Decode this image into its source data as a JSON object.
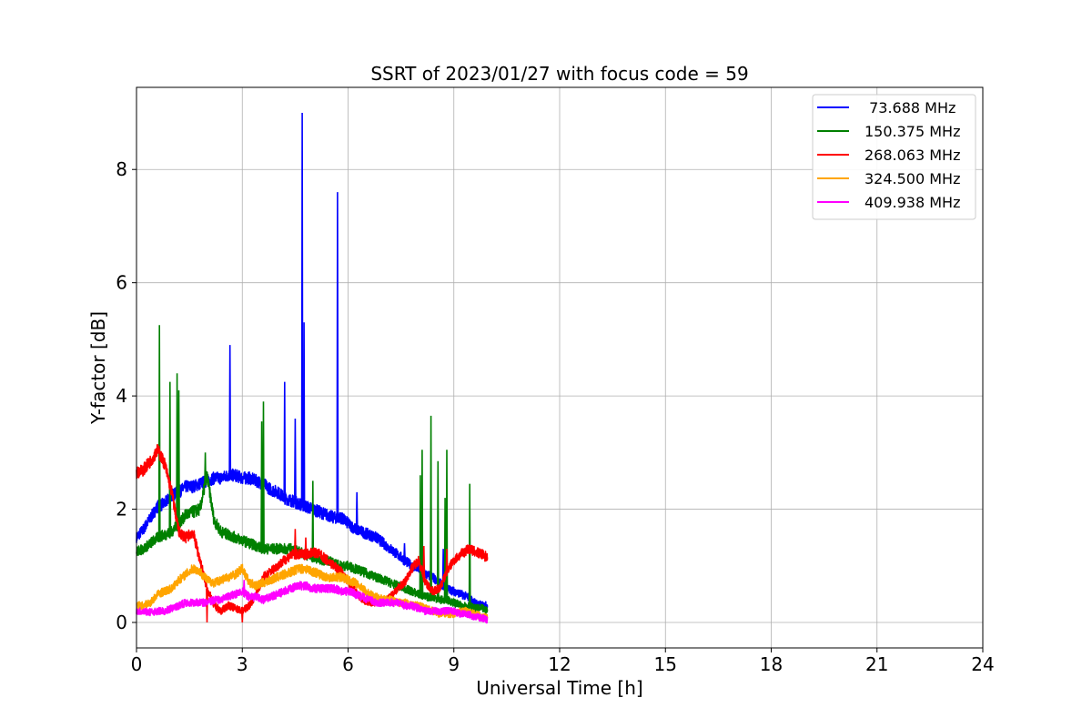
{
  "chart_data": {
    "type": "line",
    "title": "SSRT of 2023/01/27 with focus code = 59",
    "xlabel": "Universal Time [h]",
    "ylabel": "Y-factor [dB]",
    "xlim": [
      0,
      24
    ],
    "ylim": [
      -0.45,
      9.45
    ],
    "xticks": [
      0,
      3,
      6,
      9,
      12,
      15,
      18,
      21,
      24
    ],
    "yticks": [
      0,
      2,
      4,
      6,
      8
    ],
    "grid": true,
    "legend_position": "top-right",
    "series": [
      {
        "name": " 73.688 MHz",
        "color": "#0000ff",
        "points": [
          [
            0,
            1.5
          ],
          [
            0.2,
            1.65
          ],
          [
            0.4,
            1.85
          ],
          [
            0.6,
            2.05
          ],
          [
            0.8,
            2.1
          ],
          [
            1.0,
            2.25
          ],
          [
            1.2,
            2.3
          ],
          [
            1.4,
            2.4
          ],
          [
            1.6,
            2.4
          ],
          [
            1.8,
            2.45
          ],
          [
            2.0,
            2.5
          ],
          [
            2.2,
            2.55
          ],
          [
            2.4,
            2.55
          ],
          [
            2.6,
            2.6
          ],
          [
            2.8,
            2.6
          ],
          [
            3.0,
            2.55
          ],
          [
            3.2,
            2.55
          ],
          [
            3.4,
            2.5
          ],
          [
            3.6,
            2.45
          ],
          [
            3.8,
            2.35
          ],
          [
            4.0,
            2.3
          ],
          [
            4.2,
            2.2
          ],
          [
            4.4,
            2.15
          ],
          [
            4.6,
            2.1
          ],
          [
            4.8,
            2.05
          ],
          [
            5.0,
            2.0
          ],
          [
            5.2,
            1.95
          ],
          [
            5.4,
            1.9
          ],
          [
            5.6,
            1.85
          ],
          [
            5.8,
            1.85
          ],
          [
            6.0,
            1.75
          ],
          [
            6.2,
            1.65
          ],
          [
            6.4,
            1.6
          ],
          [
            6.6,
            1.55
          ],
          [
            6.8,
            1.5
          ],
          [
            7.0,
            1.4
          ],
          [
            7.2,
            1.3
          ],
          [
            7.4,
            1.2
          ],
          [
            7.6,
            1.1
          ],
          [
            7.8,
            1.0
          ],
          [
            8.0,
            0.95
          ],
          [
            8.2,
            0.85
          ],
          [
            8.4,
            0.8
          ],
          [
            8.6,
            0.7
          ],
          [
            8.8,
            0.6
          ],
          [
            9.0,
            0.55
          ],
          [
            9.2,
            0.5
          ],
          [
            9.4,
            0.45
          ],
          [
            9.6,
            0.35
          ],
          [
            9.8,
            0.3
          ],
          [
            9.95,
            0.3
          ]
        ],
        "spikes": [
          [
            2.65,
            4.9
          ],
          [
            4.2,
            4.25
          ],
          [
            4.5,
            3.6
          ],
          [
            4.7,
            9.0
          ],
          [
            4.75,
            5.3
          ],
          [
            5.7,
            7.6
          ],
          [
            6.25,
            2.3
          ],
          [
            7.6,
            1.4
          ],
          [
            8.1,
            1.3
          ],
          [
            8.7,
            1.3
          ]
        ]
      },
      {
        "name": "150.375 MHz",
        "color": "#008000",
        "points": [
          [
            0,
            1.25
          ],
          [
            0.2,
            1.3
          ],
          [
            0.4,
            1.4
          ],
          [
            0.6,
            1.5
          ],
          [
            0.8,
            1.55
          ],
          [
            1.0,
            1.6
          ],
          [
            1.2,
            1.75
          ],
          [
            1.4,
            1.9
          ],
          [
            1.6,
            1.95
          ],
          [
            1.8,
            2.0
          ],
          [
            2.0,
            2.6
          ],
          [
            2.2,
            1.8
          ],
          [
            2.4,
            1.6
          ],
          [
            2.6,
            1.55
          ],
          [
            2.8,
            1.5
          ],
          [
            3.0,
            1.45
          ],
          [
            3.2,
            1.4
          ],
          [
            3.4,
            1.35
          ],
          [
            3.6,
            1.3
          ],
          [
            3.8,
            1.3
          ],
          [
            4.0,
            1.3
          ],
          [
            4.2,
            1.3
          ],
          [
            4.4,
            1.3
          ],
          [
            4.6,
            1.25
          ],
          [
            4.8,
            1.2
          ],
          [
            5.0,
            1.15
          ],
          [
            5.2,
            1.1
          ],
          [
            5.4,
            1.1
          ],
          [
            5.6,
            1.05
          ],
          [
            5.8,
            1.0
          ],
          [
            6.0,
            1.0
          ],
          [
            6.2,
            0.95
          ],
          [
            6.4,
            0.9
          ],
          [
            6.6,
            0.85
          ],
          [
            6.8,
            0.8
          ],
          [
            7.0,
            0.75
          ],
          [
            7.2,
            0.7
          ],
          [
            7.4,
            0.65
          ],
          [
            7.6,
            0.6
          ],
          [
            7.8,
            0.55
          ],
          [
            8.0,
            0.5
          ],
          [
            8.2,
            0.45
          ],
          [
            8.4,
            0.45
          ],
          [
            8.6,
            0.4
          ],
          [
            8.8,
            0.4
          ],
          [
            9.0,
            0.35
          ],
          [
            9.2,
            0.3
          ],
          [
            9.4,
            0.3
          ],
          [
            9.6,
            0.25
          ],
          [
            9.8,
            0.25
          ],
          [
            9.95,
            0.2
          ]
        ],
        "spikes": [
          [
            0.65,
            5.25
          ],
          [
            0.95,
            4.25
          ],
          [
            1.15,
            4.4
          ],
          [
            1.2,
            4.1
          ],
          [
            1.95,
            3.0
          ],
          [
            3.55,
            3.55
          ],
          [
            3.6,
            3.9
          ],
          [
            5.0,
            2.5
          ],
          [
            8.05,
            2.6
          ],
          [
            8.1,
            3.05
          ],
          [
            8.35,
            3.65
          ],
          [
            8.55,
            2.85
          ],
          [
            8.8,
            3.05
          ],
          [
            8.75,
            2.2
          ],
          [
            9.45,
            2.45
          ]
        ]
      },
      {
        "name": "268.063 MHz",
        "color": "#ff0000",
        "points": [
          [
            0,
            2.65
          ],
          [
            0.2,
            2.7
          ],
          [
            0.4,
            2.85
          ],
          [
            0.6,
            3.05
          ],
          [
            0.8,
            2.8
          ],
          [
            1.0,
            2.3
          ],
          [
            1.2,
            1.6
          ],
          [
            1.4,
            1.5
          ],
          [
            1.6,
            1.6
          ],
          [
            1.8,
            1.1
          ],
          [
            2.0,
            0.6
          ],
          [
            2.2,
            0.3
          ],
          [
            2.4,
            0.2
          ],
          [
            2.6,
            0.3
          ],
          [
            2.8,
            0.25
          ],
          [
            3.0,
            0.2
          ],
          [
            3.2,
            0.3
          ],
          [
            3.4,
            0.5
          ],
          [
            3.6,
            0.8
          ],
          [
            3.8,
            0.9
          ],
          [
            4.0,
            1.0
          ],
          [
            4.2,
            1.1
          ],
          [
            4.4,
            1.2
          ],
          [
            4.6,
            1.2
          ],
          [
            4.8,
            1.2
          ],
          [
            5.0,
            1.25
          ],
          [
            5.2,
            1.2
          ],
          [
            5.4,
            1.1
          ],
          [
            5.6,
            1.0
          ],
          [
            5.8,
            0.9
          ],
          [
            6.0,
            0.7
          ],
          [
            6.2,
            0.55
          ],
          [
            6.4,
            0.4
          ],
          [
            6.6,
            0.35
          ],
          [
            6.8,
            0.35
          ],
          [
            7.0,
            0.35
          ],
          [
            7.2,
            0.45
          ],
          [
            7.4,
            0.6
          ],
          [
            7.6,
            0.7
          ],
          [
            7.8,
            0.95
          ],
          [
            8.0,
            1.1
          ],
          [
            8.2,
            0.7
          ],
          [
            8.4,
            0.55
          ],
          [
            8.6,
            0.6
          ],
          [
            8.8,
            0.9
          ],
          [
            9.0,
            1.1
          ],
          [
            9.2,
            1.2
          ],
          [
            9.4,
            1.3
          ],
          [
            9.6,
            1.25
          ],
          [
            9.8,
            1.2
          ],
          [
            9.95,
            1.15
          ]
        ],
        "spikes": [
          [
            4.5,
            1.65
          ],
          [
            4.8,
            1.5
          ],
          [
            2.0,
            0.0
          ],
          [
            3.0,
            0.0
          ],
          [
            8.8,
            1.3
          ],
          [
            8.15,
            1.35
          ]
        ]
      },
      {
        "name": "324.500 MHz",
        "color": "#ffa500",
        "points": [
          [
            0,
            0.3
          ],
          [
            0.2,
            0.3
          ],
          [
            0.4,
            0.35
          ],
          [
            0.6,
            0.5
          ],
          [
            0.8,
            0.55
          ],
          [
            1.0,
            0.6
          ],
          [
            1.2,
            0.75
          ],
          [
            1.4,
            0.85
          ],
          [
            1.6,
            0.95
          ],
          [
            1.8,
            0.9
          ],
          [
            2.0,
            0.75
          ],
          [
            2.2,
            0.7
          ],
          [
            2.4,
            0.75
          ],
          [
            2.6,
            0.8
          ],
          [
            2.8,
            0.85
          ],
          [
            3.0,
            0.95
          ],
          [
            3.2,
            0.7
          ],
          [
            3.4,
            0.65
          ],
          [
            3.6,
            0.7
          ],
          [
            3.8,
            0.75
          ],
          [
            4.0,
            0.8
          ],
          [
            4.2,
            0.85
          ],
          [
            4.4,
            0.9
          ],
          [
            4.6,
            0.95
          ],
          [
            4.8,
            0.95
          ],
          [
            5.0,
            0.9
          ],
          [
            5.2,
            0.85
          ],
          [
            5.4,
            0.8
          ],
          [
            5.6,
            0.8
          ],
          [
            5.8,
            0.8
          ],
          [
            6.0,
            0.75
          ],
          [
            6.2,
            0.7
          ],
          [
            6.4,
            0.6
          ],
          [
            6.6,
            0.5
          ],
          [
            6.8,
            0.45
          ],
          [
            7.0,
            0.4
          ],
          [
            7.2,
            0.4
          ],
          [
            7.4,
            0.35
          ],
          [
            7.6,
            0.35
          ],
          [
            7.8,
            0.3
          ],
          [
            8.0,
            0.3
          ],
          [
            8.2,
            0.25
          ],
          [
            8.4,
            0.2
          ],
          [
            8.6,
            0.15
          ],
          [
            8.8,
            0.15
          ],
          [
            9.0,
            0.15
          ],
          [
            9.2,
            0.2
          ],
          [
            9.4,
            0.2
          ],
          [
            9.6,
            0.15
          ],
          [
            9.8,
            0.1
          ],
          [
            9.95,
            0.1
          ]
        ],
        "spikes": []
      },
      {
        "name": "409.938 MHz",
        "color": "#ff00ff",
        "points": [
          [
            0,
            0.2
          ],
          [
            0.2,
            0.2
          ],
          [
            0.4,
            0.18
          ],
          [
            0.6,
            0.2
          ],
          [
            0.8,
            0.2
          ],
          [
            1.0,
            0.25
          ],
          [
            1.2,
            0.3
          ],
          [
            1.4,
            0.35
          ],
          [
            1.6,
            0.35
          ],
          [
            1.8,
            0.35
          ],
          [
            2.0,
            0.35
          ],
          [
            2.2,
            0.4
          ],
          [
            2.4,
            0.4
          ],
          [
            2.6,
            0.45
          ],
          [
            2.8,
            0.5
          ],
          [
            3.0,
            0.55
          ],
          [
            3.2,
            0.45
          ],
          [
            3.4,
            0.45
          ],
          [
            3.6,
            0.4
          ],
          [
            3.8,
            0.45
          ],
          [
            4.0,
            0.5
          ],
          [
            4.2,
            0.55
          ],
          [
            4.4,
            0.6
          ],
          [
            4.6,
            0.65
          ],
          [
            4.8,
            0.65
          ],
          [
            5.0,
            0.6
          ],
          [
            5.2,
            0.6
          ],
          [
            5.4,
            0.6
          ],
          [
            5.6,
            0.6
          ],
          [
            5.8,
            0.55
          ],
          [
            6.0,
            0.55
          ],
          [
            6.2,
            0.5
          ],
          [
            6.4,
            0.45
          ],
          [
            6.6,
            0.4
          ],
          [
            6.8,
            0.35
          ],
          [
            7.0,
            0.35
          ],
          [
            7.2,
            0.35
          ],
          [
            7.4,
            0.35
          ],
          [
            7.6,
            0.3
          ],
          [
            7.8,
            0.3
          ],
          [
            8.0,
            0.25
          ],
          [
            8.2,
            0.2
          ],
          [
            8.4,
            0.2
          ],
          [
            8.6,
            0.2
          ],
          [
            8.8,
            0.2
          ],
          [
            9.0,
            0.2
          ],
          [
            9.2,
            0.15
          ],
          [
            9.4,
            0.15
          ],
          [
            9.6,
            0.1
          ],
          [
            9.8,
            0.08
          ],
          [
            9.95,
            0.05
          ]
        ],
        "spikes": [
          [
            3.05,
            0.75
          ]
        ]
      }
    ]
  }
}
